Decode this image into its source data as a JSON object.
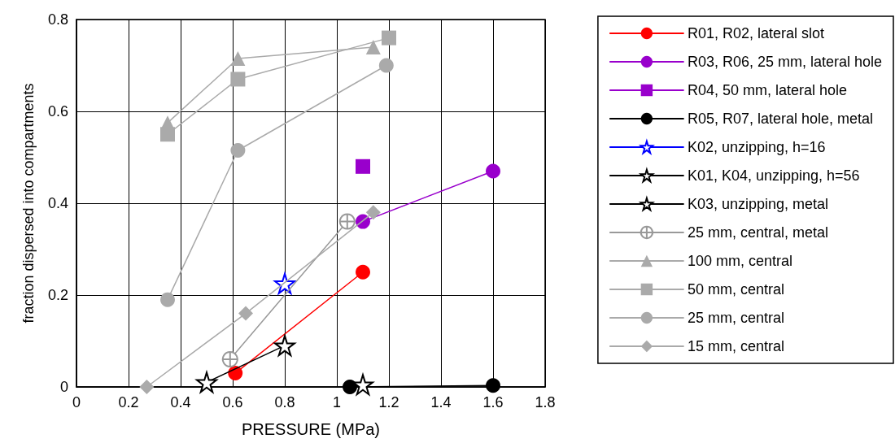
{
  "chart_data": {
    "type": "line",
    "xlabel": "PRESSURE (MPa)",
    "ylabel": "fraction dispersed into compartments",
    "xlim": [
      0,
      1.8
    ],
    "xticks": [
      0,
      0.2,
      0.4,
      0.6,
      0.8,
      1,
      1.2,
      1.4,
      1.6,
      1.8
    ],
    "ylim": [
      0,
      0.8
    ],
    "yticks": [
      0,
      0.2,
      0.4,
      0.6,
      0.8
    ],
    "grid": true,
    "legend": "right",
    "line_style": "solid",
    "series": [
      {
        "name": "R01, R02, lateral slot",
        "color": "#ff0000",
        "marker": "circle",
        "x": [
          0.61,
          1.1
        ],
        "values": [
          0.03,
          0.25
        ]
      },
      {
        "name": "R03, R06, 25 mm, lateral hole",
        "color": "#9900cc",
        "marker": "circle",
        "x": [
          1.1,
          1.6
        ],
        "values": [
          0.36,
          0.47
        ]
      },
      {
        "name": "R04, 50 mm, lateral hole",
        "color": "#9900cc",
        "marker": "square",
        "x": [
          1.1
        ],
        "values": [
          0.48
        ]
      },
      {
        "name": "R05, R07, lateral hole, metal",
        "color": "#000000",
        "marker": "circle",
        "x": [
          1.05,
          1.6
        ],
        "values": [
          0,
          0.003
        ]
      },
      {
        "name": "K02, unzipping, h=16",
        "color": "#0000ff",
        "marker": "star",
        "x": [
          0.8
        ],
        "values": [
          0.225
        ]
      },
      {
        "name": "K01, K04, unzipping, h=56",
        "color": "#000000",
        "marker": "star",
        "x": [
          0.5,
          0.8
        ],
        "values": [
          0.01,
          0.09
        ]
      },
      {
        "name": "K03, unzipping, metal",
        "color": "#000000",
        "marker": "star",
        "x": [
          1.1
        ],
        "values": [
          0.005
        ]
      },
      {
        "name": "25 mm, central, metal",
        "color": "#999999",
        "marker": "cross",
        "x": [
          0.59,
          1.04
        ],
        "values": [
          0.06,
          0.36
        ]
      },
      {
        "name": "100 mm, central",
        "color": "#aaaaaa",
        "marker": "triangle",
        "x": [
          0.35,
          0.62,
          1.14
        ],
        "values": [
          0.575,
          0.715,
          0.74
        ]
      },
      {
        "name": "50 mm, central",
        "color": "#aaaaaa",
        "marker": "square",
        "x": [
          0.35,
          0.62,
          1.2
        ],
        "values": [
          0.55,
          0.67,
          0.76
        ]
      },
      {
        "name": "25 mm, central",
        "color": "#aaaaaa",
        "marker": "circle",
        "x": [
          0.35,
          0.62,
          1.19
        ],
        "values": [
          0.19,
          0.515,
          0.7
        ]
      },
      {
        "name": "15 mm, central",
        "color": "#aaaaaa",
        "marker": "diamond",
        "x": [
          0.27,
          0.65,
          1.14
        ],
        "values": [
          0,
          0.16,
          0.38
        ]
      }
    ]
  }
}
